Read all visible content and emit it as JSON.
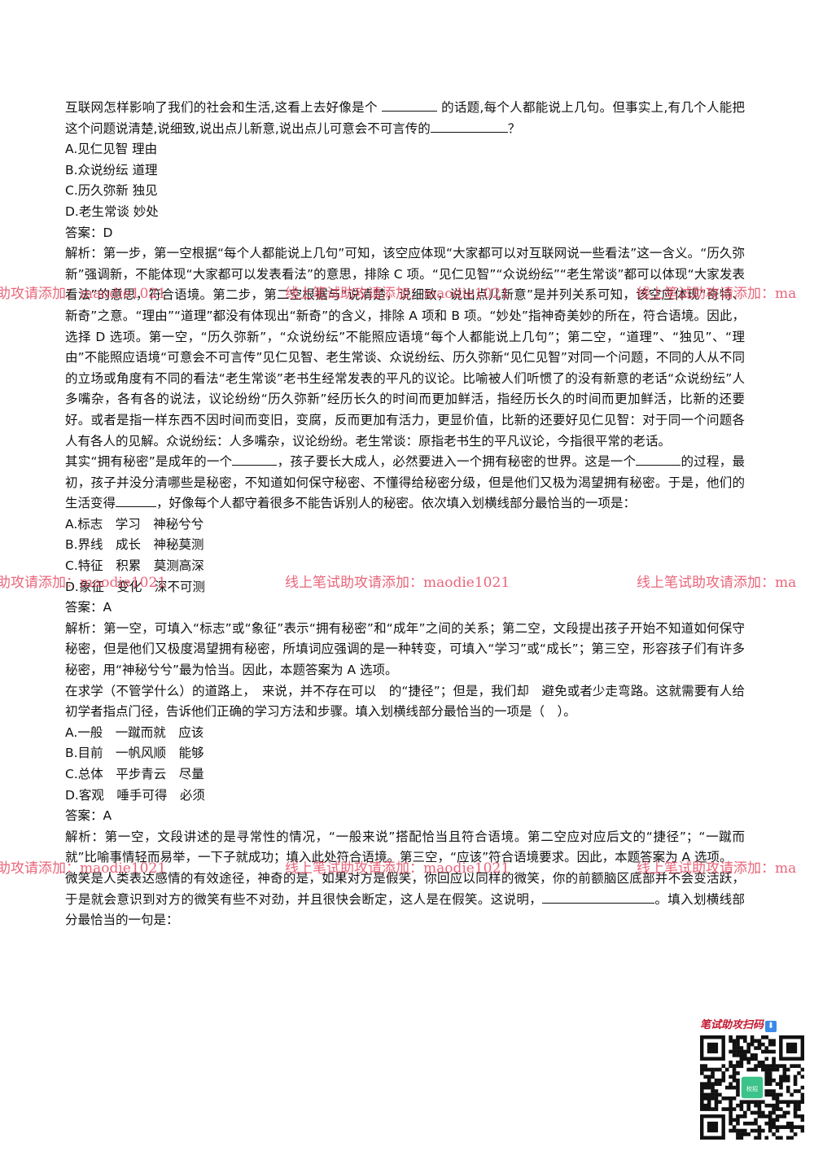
{
  "q1": {
    "stem": [
      "互联网怎样影响了我们的社会和生活,这看上去好像是个 ",
      " 的话题,每个人都能说上几句。但事实上,有几个人能把这个问题说清楚,说细致,说出点儿新意,说出点儿可意会不可言传的",
      "？"
    ],
    "options": [
      "A.见仁见智 理由",
      "B.众说纷纭 道理",
      "C.历久弥新 独见",
      "D.老生常谈 妙处"
    ],
    "answer": "答案：D",
    "analysis": "解析：第一步，第一空根据“每个人都能说上几句”可知，该空应体现“大家都可以对互联网说一些看法”这一含义。“历久弥新”强调新，不能体现“大家都可以发表看法”的意思，排除 C 项。“见仁见智”“众说纷纭”“老生常谈”都可以体现“大家发表看法”的意思，符合语境。第二步，第二空根据与“说清楚，说细致，说出点儿新意”是并列关系可知，该空应体现“奇特、新奇”之意。“理由”“道理”都没有体现出“新奇”的含义，排除 A 项和 B 项。“妙处”指神奇美妙的所在，符合语境。因此，选择 D 选项。第一空，“历久弥新”，“众说纷纭”不能照应语境“每个人都能说上几句”；第二空，“道理”、“独见”、“理由”不能照应语境“可意会不可言传”见仁见智、老生常谈、众说纷纭、历久弥新“见仁见智”对同一个问题，不同的人从不同的立场或角度有不同的看法“老生常谈”老书生经常发表的平凡的议论。比喻被人们听惯了的没有新意的老话“众说纷纭”人多嘴杂，各有各的说法，议论纷纷“历久弥新”经历长久的时间而更加鲜活，指经历长久的时间而更加鲜活，比新的还要好。或者是指一样东西不因时间而变旧，变腐，反而更加有活力，更显价值，比新的还要好见仁见智：对于同一个问题各人有各人的见解。众说纷纭：人多嘴杂，议论纷纷。老生常谈：原指老书生的平凡议论，今指很平常的老话。"
  },
  "q2": {
    "stem": [
      "其实“拥有秘密”是成年的一个",
      "，孩子要长大成人，必然要进入一个拥有秘密的世界。这是一个",
      "的过程，最初，孩子并没分清哪些是秘密，不知道如何保守秘密、不懂得给秘密分级，但是他们又极为渴望拥有秘密。于是，他们的生活变得",
      "，好像每个人都守着很多不能告诉别人的秘密。依次填入划横线部分最恰当的一项是："
    ],
    "options": [
      "A.标志　学习　神秘兮兮",
      "B.界线　成长　神秘莫测",
      "C.特征　积累　莫测高深",
      "D.象征　变化　深不可测"
    ],
    "answer": "答案：A",
    "analysis": "解析：第一空，可填入“标志”或“象征”表示“拥有秘密”和“成年”之间的关系；第二空，文段提出孩子开始不知道如何保守秘密，但是他们又极度渴望拥有秘密，所填词应强调的是一种转变，可填入“学习”或“成长”；第三空，形容孩子们有许多秘密，用“神秘兮兮”最为恰当。因此，本题答案为 A 选项。"
  },
  "q3": {
    "stem": "在求学（不管学什么）的道路上，　来说，并不存在可以　的“捷径”；但是，我们却　避免或者少走弯路。这就需要有人给初学者指点门径，告诉他们正确的学习方法和步骤。填入划横线部分最恰当的一项是（　）。",
    "options": [
      "A.一般　一蹴而就　应该",
      "B.目前　一帆风顺　能够",
      "C.总体　平步青云　尽量",
      "D.客观　唾手可得　必须"
    ],
    "answer": "答案：A",
    "analysis": "解析：第一空，文段讲述的是寻常性的情况，“一般来说”搭配恰当且符合语境。第二空应对应后文的“捷径”；“一蹴而就”比喻事情轻而易举，一下子就成功；填入此处符合语境。第三空，“应该”符合语境要求。因此，本题答案为 A 选项。"
  },
  "q4": {
    "stem": [
      "微笑是人类表达感情的有效途径，神奇的是，如果对方是假笑，你回应以同样的微笑，你的前额脑区底部并不会变活跃，于是就会意识到对方的微笑有些不对劲，并且很快会断定，这人是在假笑。这说明，",
      "。填入划横线部分最恰当的一句是："
    ]
  },
  "watermark": "线上笔试助攻请添加：maodie1021",
  "watermark_left": "助攻请添加：maodie1021",
  "watermark_right": "线上笔试助攻请添加：ma",
  "qr_label": "笔试助攻扫码",
  "qr_center_text": "校招"
}
